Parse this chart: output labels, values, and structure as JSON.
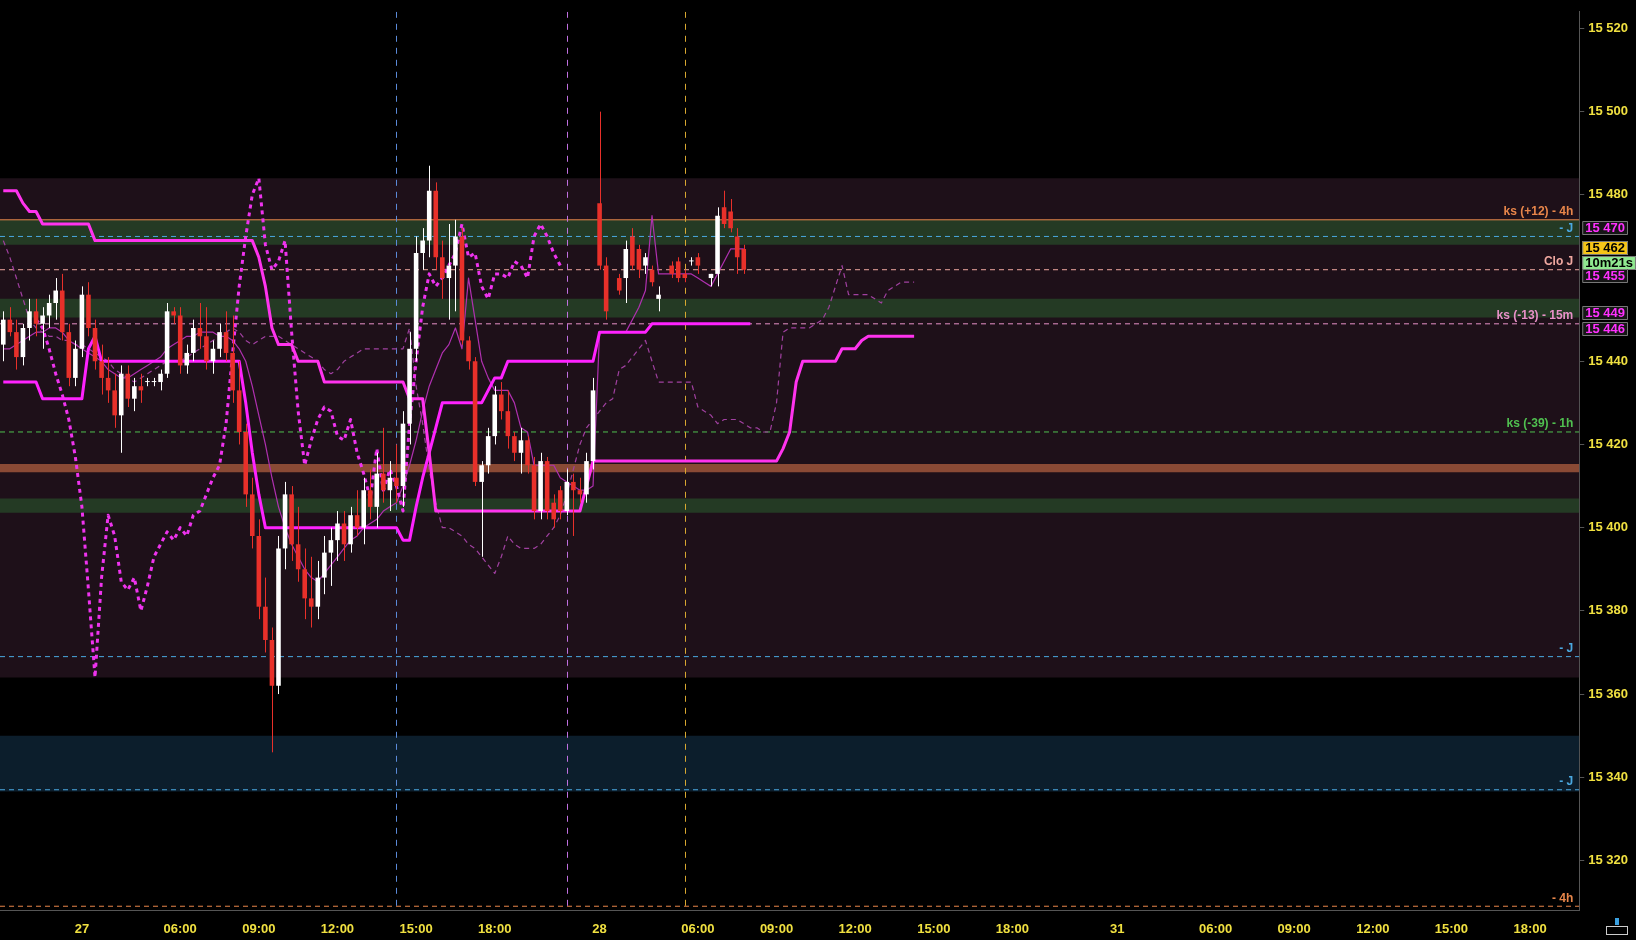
{
  "chart_data": {
    "type": "candlestick",
    "categories": [
      null,
      null,
      null,
      null,
      null,
      null,
      null,
      null,
      null,
      null,
      null,
      null,
      "27",
      null,
      null,
      null,
      null,
      null,
      null,
      null,
      null,
      null,
      null,
      null,
      null,
      null,
      null,
      "06:00",
      null,
      null,
      null,
      null,
      null,
      null,
      null,
      null,
      null,
      null,
      null,
      "09:00",
      null,
      null,
      null,
      null,
      null,
      null,
      null,
      null,
      null,
      null,
      null,
      "12:00",
      null,
      null,
      null,
      null,
      null,
      null,
      null,
      null,
      null,
      null,
      null,
      "15:00",
      null,
      null,
      null,
      null,
      null,
      null,
      null,
      null,
      null,
      null,
      null,
      "18:00",
      null,
      null,
      null,
      null,
      null,
      null,
      null,
      null,
      null,
      null,
      null,
      null,
      null,
      null,
      null,
      "28",
      null,
      null,
      null,
      null,
      null,
      null,
      null,
      null,
      null,
      null,
      null,
      null,
      null,
      null,
      "06:00",
      null,
      null,
      null,
      null,
      null,
      null,
      null,
      null,
      null,
      null,
      null,
      "09:00",
      null,
      null,
      null,
      null,
      null,
      null,
      null,
      null,
      null,
      null,
      null,
      "12:00",
      null,
      null,
      null,
      null,
      null,
      null,
      null,
      null,
      null,
      null,
      null,
      "15:00",
      null,
      null,
      null,
      null,
      null,
      null,
      null,
      null,
      null,
      null,
      null,
      "18:00",
      null,
      null,
      null,
      null,
      null,
      null,
      null,
      null,
      null,
      null,
      null,
      null,
      null,
      null,
      null,
      "31",
      null,
      null,
      null,
      null,
      null,
      null,
      null,
      null,
      null,
      null,
      null,
      null,
      null,
      null,
      "06:00",
      null,
      null,
      null,
      null,
      null,
      null,
      null,
      null,
      null,
      null,
      null,
      "09:00",
      null,
      null,
      null,
      null,
      null,
      null,
      null,
      null,
      null,
      null,
      null,
      "12:00",
      null,
      null,
      null,
      null,
      null,
      null,
      null,
      null,
      null,
      null,
      null,
      "15:00",
      null,
      null,
      null,
      null,
      null,
      null,
      null,
      null,
      null,
      null,
      null,
      "18:00",
      null,
      null,
      null,
      null,
      null,
      null,
      null
    ],
    "ohlc": [
      [
        15444,
        15452,
        15440,
        15450
      ],
      [
        15450,
        15453,
        15446,
        15447
      ],
      [
        15447,
        15450,
        15438,
        15441
      ],
      [
        15441,
        15449,
        15439,
        15448
      ],
      [
        15448,
        15455,
        15445,
        15452
      ],
      [
        15452,
        15455,
        15446,
        15449
      ],
      [
        15449,
        15453,
        15443,
        15451
      ],
      [
        15451,
        15456,
        15448,
        15454
      ],
      [
        15454,
        15460,
        15450,
        15457
      ],
      [
        15457,
        15461,
        15445,
        15447
      ],
      [
        15447,
        15449,
        15434,
        15436
      ],
      [
        15436,
        15445,
        15434,
        15443
      ],
      [
        15443,
        15458,
        15441,
        15456
      ],
      [
        15456,
        15459,
        15446,
        15448
      ],
      [
        15448,
        15450,
        15438,
        15440
      ],
      [
        15440,
        15444,
        15432,
        15436
      ],
      [
        15436,
        15441,
        15430,
        15433
      ],
      [
        15433,
        15437,
        15424,
        15427
      ],
      [
        15427,
        15439,
        15418,
        15437
      ],
      [
        15437,
        15439,
        15429,
        15431
      ],
      [
        15431,
        15436,
        15428,
        15434
      ],
      [
        15434,
        15437,
        15430,
        15433
      ],
      [
        15435,
        15436,
        15434,
        15435
      ],
      [
        15435,
        15436,
        15434,
        15435
      ],
      [
        15435,
        15438,
        15433,
        15437
      ],
      [
        15437,
        15454,
        15436,
        15452
      ],
      [
        15452,
        15453,
        15449,
        15451
      ],
      [
        15451,
        15453,
        15437,
        15439
      ],
      [
        15439,
        15444,
        15437,
        15442
      ],
      [
        15442,
        15450,
        15440,
        15448
      ],
      [
        15448,
        15454,
        15443,
        15446
      ],
      [
        15446,
        15453,
        15438,
        15440
      ],
      [
        15440,
        15445,
        15437,
        15443
      ],
      [
        15443,
        15449,
        15441,
        15447
      ],
      [
        15447,
        15452,
        15440,
        15442
      ],
      [
        15442,
        15451,
        15430,
        15433
      ],
      [
        15433,
        15440,
        15420,
        15423
      ],
      [
        15423,
        15425,
        15405,
        15408
      ],
      [
        15408,
        15412,
        15395,
        15398
      ],
      [
        15398,
        15402,
        15378,
        15381
      ],
      [
        15381,
        15388,
        15370,
        15373
      ],
      [
        15373,
        15376,
        15346,
        15362
      ],
      [
        15362,
        15398,
        15360,
        15395
      ],
      [
        15395,
        15411,
        15390,
        15408
      ],
      [
        15408,
        15410,
        15392,
        15396
      ],
      [
        15396,
        15405,
        15387,
        15390
      ],
      [
        15390,
        15395,
        15378,
        15383
      ],
      [
        15383,
        15393,
        15376,
        15381
      ],
      [
        15381,
        15392,
        15378,
        15388
      ],
      [
        15388,
        15398,
        15384,
        15394
      ],
      [
        15394,
        15400,
        15386,
        15397
      ],
      [
        15397,
        15404,
        15392,
        15401
      ],
      [
        15401,
        15404,
        15392,
        15396
      ],
      [
        15396,
        15405,
        15394,
        15403
      ],
      [
        15403,
        15409,
        15398,
        15400
      ],
      [
        15400,
        15412,
        15396,
        15409
      ],
      [
        15409,
        15414,
        15402,
        15405
      ],
      [
        15405,
        15418,
        15400,
        15413
      ],
      [
        15413,
        15424,
        15406,
        15409
      ],
      [
        15409,
        15416,
        15404,
        15412
      ],
      [
        15412,
        15420,
        15406,
        15410
      ],
      [
        15410,
        15428,
        15405,
        15425
      ],
      [
        15425,
        15447,
        15420,
        15443
      ],
      [
        15443,
        15470,
        15440,
        15466
      ],
      [
        15466,
        15472,
        15462,
        15469
      ],
      [
        15469,
        15487,
        15465,
        15481
      ],
      [
        15481,
        15483,
        15462,
        15465
      ],
      [
        15465,
        15469,
        15455,
        15460
      ],
      [
        15460,
        15473,
        15450,
        15463
      ],
      [
        15463,
        15474,
        15452,
        15470
      ],
      [
        15470,
        15472,
        15444,
        15445
      ],
      [
        15445,
        15446,
        15438,
        15440
      ],
      [
        15440,
        15441,
        15410,
        15411
      ],
      [
        15411,
        15416,
        15393,
        15415
      ],
      [
        15415,
        15424,
        15413,
        15422
      ],
      [
        15422,
        15434,
        15420,
        15432
      ],
      [
        15432,
        15435,
        15426,
        15428
      ],
      [
        15428,
        15433,
        15419,
        15422
      ],
      [
        15422,
        15423,
        15416,
        15418
      ],
      [
        15418,
        15424,
        15413,
        15421
      ],
      [
        15421,
        15422,
        15413,
        15415
      ],
      [
        15415,
        15417,
        15402,
        15404
      ],
      [
        15404,
        15418,
        15402,
        15416
      ],
      [
        15416,
        15417,
        15402,
        15404
      ],
      [
        15406,
        15408,
        15400,
        15402
      ],
      [
        15409,
        15410,
        15402,
        15404
      ],
      [
        15404,
        15414,
        15403,
        15411
      ],
      [
        15411,
        15413,
        15398,
        15409
      ],
      [
        15409,
        15412,
        15406,
        15408
      ],
      [
        15408,
        15418,
        15406,
        15416
      ],
      [
        15416,
        15436,
        15414,
        15433
      ],
      [
        15478,
        15500,
        15462,
        15463
      ],
      [
        15463,
        15465,
        15450,
        15452
      ],
      null,
      [
        15460,
        15461,
        15456,
        15457
      ],
      [
        15460,
        15469,
        15454,
        15467
      ],
      [
        15470,
        15472,
        15462,
        15463
      ],
      [
        15467,
        15468,
        15460,
        15462
      ],
      [
        15463,
        15466,
        15461,
        15465
      ],
      [
        15462,
        15463,
        15458,
        15459
      ],
      [
        15455,
        15458,
        15452,
        15456
      ],
      null,
      [
        15463,
        15464,
        15460,
        15461
      ],
      [
        15464,
        15465,
        15459,
        15460
      ],
      [
        15461,
        15462,
        15459,
        15460
      ],
      [
        15464,
        15465,
        15463,
        15464
      ],
      [
        15465,
        15466,
        15461,
        15463
      ],
      null,
      [
        15460,
        15461,
        15458,
        15461
      ],
      [
        15461,
        15477,
        15458,
        15475
      ],
      [
        15477,
        15481,
        15472,
        15473
      ],
      [
        15476,
        15479,
        15471,
        15472
      ],
      [
        15470,
        15472,
        15461,
        15465
      ],
      [
        15467,
        15468,
        15461,
        15462
      ],
      null,
      null,
      null,
      null,
      null,
      null,
      null,
      null,
      null,
      null,
      null,
      null,
      null,
      null,
      null,
      null,
      null,
      null,
      null,
      null,
      null,
      null,
      null,
      null,
      null,
      null,
      null,
      null,
      null,
      null,
      null,
      null,
      null,
      null,
      null,
      null,
      null,
      null,
      null,
      null,
      null,
      null,
      null,
      null,
      null,
      null,
      null,
      null,
      null,
      null,
      null,
      null,
      null,
      null,
      null,
      null,
      null,
      null,
      null,
      null,
      null,
      null,
      null,
      null,
      null,
      null,
      null,
      null,
      null,
      null,
      null,
      null,
      null,
      null,
      null,
      null,
      null,
      null,
      null,
      null,
      null,
      null,
      null,
      null,
      null,
      null,
      null,
      null,
      null,
      null,
      null,
      null,
      null,
      null,
      null,
      null,
      null,
      null,
      null,
      null,
      null,
      null,
      null,
      null,
      null,
      null,
      null,
      null,
      null,
      null,
      null,
      null,
      null,
      null,
      null,
      null,
      null,
      null,
      null,
      null,
      null,
      null,
      null,
      null,
      null,
      null,
      null
    ],
    "colors": [
      "#ffffff",
      "#e8302a",
      "#e8302a",
      "#ffffff",
      "#ffffff",
      "#e8302a",
      "#ffffff",
      "#ffffff",
      "#ffffff",
      "#e8302a",
      "#e8302a",
      "#ffffff",
      "#ffffff",
      "#e8302a",
      "#e8302a",
      "#e8302a",
      "#e8302a",
      "#e8302a",
      "#ffffff",
      "#e8302a",
      "#ffffff",
      "#e8302a",
      "#ffffff",
      "#ffffff",
      "#ffffff",
      "#ffffff",
      "#e8302a",
      "#e8302a",
      "#ffffff",
      "#ffffff",
      "#e8302a",
      "#e8302a",
      "#ffffff",
      "#ffffff",
      "#e8302a",
      "#e8302a",
      "#e8302a",
      "#e8302a",
      "#e8302a",
      "#e8302a",
      "#e8302a",
      "#e8302a",
      "#ffffff",
      "#ffffff",
      "#e8302a",
      "#e8302a",
      "#e8302a",
      "#e8302a",
      "#ffffff",
      "#ffffff",
      "#ffffff",
      "#ffffff",
      "#e8302a",
      "#ffffff",
      "#e8302a",
      "#ffffff",
      "#e8302a",
      "#ffffff",
      "#e8302a",
      "#ffffff",
      "#e8302a",
      "#ffffff",
      "#ffffff",
      "#ffffff",
      "#ffffff",
      "#ffffff",
      "#e8302a",
      "#e8302a",
      "#ffffff",
      "#ffffff",
      "#e8302a",
      "#e8302a",
      "#e8302a",
      "#ffffff",
      "#ffffff",
      "#ffffff",
      "#e8302a",
      "#e8302a",
      "#e8302a",
      "#ffffff",
      "#e8302a",
      "#e8302a",
      "#ffffff",
      "#e8302a",
      "#e8302a",
      "#e8302a",
      "#ffffff",
      "#e8302a",
      "#e8302a",
      "#ffffff",
      "#ffffff",
      "#e8302a",
      "#e8302a",
      null,
      "#e8302a",
      "#ffffff",
      "#e8302a",
      "#e8302a",
      "#ffffff",
      "#e8302a",
      "#ffffff",
      null,
      "#e8302a",
      "#e8302a",
      "#e8302a",
      "#ffffff",
      "#e8302a",
      null,
      "#ffffff",
      "#ffffff",
      "#e8302a",
      "#e8302a",
      "#e8302a",
      "#e8302a",
      null,
      null,
      null,
      null,
      null,
      null,
      null,
      null,
      null,
      null,
      null,
      null,
      null,
      null,
      null,
      null,
      null,
      null,
      null,
      null,
      null,
      null,
      null,
      null,
      null,
      null,
      null,
      null,
      null,
      null,
      null,
      null,
      null,
      null,
      null,
      null,
      null,
      null,
      null,
      null,
      null,
      null,
      null,
      null,
      null,
      null,
      null,
      null,
      null,
      null,
      null,
      null,
      null,
      null,
      null,
      null,
      null,
      null,
      null,
      null,
      null,
      null,
      null,
      null,
      null,
      null,
      null,
      null,
      null,
      null,
      null,
      null,
      null,
      null,
      null,
      null,
      null,
      null,
      null,
      null,
      null,
      null,
      null,
      null,
      null,
      null,
      null,
      null,
      null,
      null,
      null,
      null,
      null,
      null,
      null,
      null,
      null,
      null,
      null,
      null,
      null,
      null,
      null,
      null,
      null,
      null,
      null,
      null,
      null,
      null,
      null,
      null,
      null,
      null,
      null,
      null,
      null,
      null,
      null,
      null,
      null,
      null,
      null,
      null,
      null,
      null,
      null
    ],
    "series": [
      {
        "type": "line",
        "color": "#ff33ee",
        "line_style": "solid",
        "values": [
          15481,
          15481,
          15481,
          15478,
          15476,
          15476,
          15473,
          15473,
          15473,
          15473,
          15473,
          15473,
          15473,
          15473,
          15469,
          15469,
          15469,
          15469,
          15469,
          15469,
          15469,
          15469,
          15469,
          15469,
          15469,
          15469,
          15469,
          15469,
          15469,
          15469,
          15469,
          15469,
          15469,
          15469,
          15469,
          15469,
          15469,
          15469,
          15469,
          15465,
          15458,
          15448,
          15444,
          15444,
          15444,
          15440,
          15440,
          15440,
          15440,
          15435,
          15435,
          15435,
          15435,
          15435,
          15435,
          15435,
          15435,
          15435,
          15435,
          15435,
          15435,
          15435,
          15431,
          15431,
          15431,
          15418,
          15404,
          15404,
          15404,
          15404,
          15404,
          15404,
          15404,
          15404,
          15404,
          15404,
          15404,
          15404,
          15404,
          15404,
          15404,
          15404,
          15404,
          15404,
          15404,
          15404,
          15404,
          15404,
          15404,
          15410,
          15416,
          15416,
          15416,
          15416,
          15416,
          15416,
          15416,
          15416,
          15416,
          15416,
          15416,
          15416,
          15416,
          15416,
          15416,
          15416,
          15416,
          15416,
          15416,
          15416,
          15416,
          15416,
          15416,
          15416,
          15416,
          15416,
          15416,
          15416,
          15416,
          15419,
          15423,
          15435,
          15440,
          15440,
          15440,
          15440,
          15440,
          15440,
          15443,
          15443,
          15443,
          15445,
          15446,
          15446,
          15446,
          15446,
          15446,
          15446,
          15446,
          15446,
          null,
          null,
          null,
          null,
          null,
          null,
          null,
          null,
          null,
          null,
          null,
          null,
          null,
          null,
          null,
          null,
          null,
          null,
          null,
          null,
          null,
          null,
          null,
          null,
          null,
          null,
          null,
          null,
          null,
          null,
          null,
          null,
          null,
          null,
          null,
          null,
          null,
          null,
          null,
          null,
          null,
          null,
          null,
          null,
          null,
          null,
          null,
          null,
          null,
          null,
          null,
          null,
          null,
          null,
          null,
          null,
          null,
          null,
          null,
          null,
          null,
          null,
          null,
          null,
          null,
          null,
          null,
          null,
          null,
          null,
          null,
          null,
          null,
          null,
          null,
          null,
          null,
          null,
          null,
          null,
          null,
          null,
          null,
          null,
          null,
          null,
          null,
          null,
          null,
          null,
          null,
          null,
          null,
          null,
          null,
          null,
          null,
          null,
          null,
          null,
          null
        ]
      },
      {
        "type": "line",
        "color": "#ff22ff",
        "line_style": "solid",
        "values": [
          15435,
          15435,
          15435,
          15435,
          15435,
          15435,
          15431,
          15431,
          15431,
          15431,
          15431,
          15431,
          15431,
          15443,
          15446,
          15440,
          15440,
          15440,
          15440,
          15440,
          15440,
          15440,
          15440,
          15440,
          15440,
          15440,
          15440,
          15440,
          15440,
          15440,
          15440,
          15440,
          15440,
          15440,
          15440,
          15440,
          15440,
          15430,
          15418,
          15408,
          15400,
          15400,
          15400,
          15400,
          15400,
          15400,
          15400,
          15400,
          15400,
          15400,
          15400,
          15400,
          15400,
          15400,
          15400,
          15400,
          15400,
          15400,
          15400,
          15400,
          15400,
          15397,
          15397,
          15405,
          15412,
          15418,
          15424,
          15430,
          15430,
          15430,
          15430,
          15430,
          15430,
          15430,
          15433,
          15436,
          15436,
          15440,
          15440,
          15440,
          15440,
          15440,
          15440,
          15440,
          15440,
          15440,
          15440,
          15440,
          15440,
          15440,
          15440,
          15447,
          15447,
          15447,
          15447,
          15447,
          15447,
          15447,
          15447,
          15449,
          15449,
          15449,
          15449,
          15449,
          15449,
          15449,
          15449,
          15449,
          15449,
          15449,
          15449,
          15449,
          15449,
          15449,
          15449,
          null,
          null,
          null,
          null,
          null,
          null,
          null,
          null,
          null,
          null,
          null,
          null,
          null,
          null,
          null,
          null,
          null,
          null,
          null,
          null,
          null,
          null,
          null,
          null,
          null,
          null,
          null,
          null,
          null,
          null,
          null,
          null,
          null,
          null,
          null,
          null,
          null,
          null,
          null,
          null,
          null,
          null,
          null,
          null,
          null,
          null,
          null,
          null,
          null,
          null,
          null,
          null,
          null,
          null,
          null,
          null,
          null,
          null,
          null,
          null,
          null,
          null,
          null,
          null,
          null,
          null,
          null,
          null,
          null,
          null,
          null,
          null,
          null,
          null,
          null,
          null,
          null,
          null,
          null,
          null,
          null,
          null,
          null,
          null,
          null,
          null,
          null,
          null,
          null,
          null,
          null,
          null,
          null,
          null,
          null,
          null,
          null,
          null,
          null,
          null,
          null,
          null,
          null,
          null,
          null,
          null,
          null,
          null,
          null,
          null,
          null,
          null,
          null,
          null,
          null,
          null,
          null,
          null,
          null,
          null,
          null,
          null,
          null,
          null,
          null,
          null
        ]
      },
      {
        "type": "line",
        "color": "#ee33ee",
        "line_style": "dotted",
        "values": [
          null,
          null,
          null,
          null,
          null,
          15450,
          15448,
          15443,
          15437,
          15432,
          15426,
          15417,
          15405,
          15385,
          15364,
          15388,
          15403,
          15398,
          15387,
          15385,
          15388,
          15380,
          15386,
          15393,
          15396,
          15399,
          15397,
          15400,
          15398,
          15403,
          15404,
          15408,
          15412,
          15415,
          15425,
          15442,
          15458,
          15470,
          15480,
          15484,
          15468,
          15462,
          15464,
          15469,
          15447,
          15428,
          15415,
          15421,
          15426,
          15429,
          15428,
          15422,
          15421,
          15426,
          15418,
          15413,
          15407,
          15419,
          15409,
          15414,
          15410,
          15404,
          15425,
          15440,
          15453,
          15461,
          15458,
          15460,
          15463,
          15466,
          15473,
          15465,
          15466,
          15458,
          15455,
          15461,
          15461,
          15460,
          15464,
          15463,
          15460,
          15470,
          15473,
          15470,
          15466,
          15463,
          null,
          null,
          null,
          null,
          null,
          null,
          null,
          null,
          null,
          null,
          null,
          null,
          null,
          null,
          null,
          null,
          null,
          null,
          null,
          null,
          null,
          null,
          null,
          null,
          null,
          null,
          null,
          null,
          null,
          null,
          null,
          null,
          null,
          null,
          null,
          null,
          null,
          null,
          null,
          null,
          null,
          null,
          null,
          null,
          null,
          null,
          null,
          null,
          null,
          null,
          null,
          null,
          null,
          null,
          null,
          null,
          null,
          null,
          null,
          null,
          null,
          null,
          null,
          null,
          null,
          null,
          null,
          null,
          null,
          null,
          null,
          null,
          null,
          null,
          null,
          null,
          null,
          null,
          null,
          null,
          null,
          null,
          null,
          null,
          null,
          null,
          null,
          null,
          null,
          null,
          null,
          null,
          null,
          null,
          null,
          null,
          null,
          null,
          null,
          null,
          null,
          null,
          null,
          null,
          null,
          null,
          null,
          null,
          null,
          null,
          null,
          null,
          null,
          null,
          null,
          null,
          null,
          null,
          null,
          null,
          null,
          null,
          null,
          null,
          null,
          null,
          null,
          null,
          null,
          null,
          null,
          null,
          null,
          null,
          null,
          null,
          null,
          null,
          null,
          null,
          null,
          null,
          null,
          null,
          null,
          null,
          null,
          null,
          null,
          null,
          null,
          null,
          null,
          null,
          null
        ]
      },
      {
        "type": "line",
        "color": "#b030b0",
        "line_style": "solid",
        "values": [
          15443,
          15443,
          15444,
          15445,
          15446,
          15447,
          15447,
          15448,
          15448,
          15447,
          15445,
          15444,
          15443,
          15442,
          15441,
          15440,
          15438,
          15437,
          15436,
          15436,
          15437,
          15438,
          15439,
          15440,
          15441,
          15443,
          15444,
          15445,
          15446,
          15446,
          15447,
          15447,
          15447,
          15446,
          15446,
          15445,
          15443,
          15440,
          15434,
          15427,
          15420,
          15412,
          15405,
          15400,
          15396,
          15393,
          15390,
          15388,
          15387,
          15389,
          15391,
          15393,
          15395,
          15397,
          15398,
          15400,
          15401,
          15402,
          15404,
          15405,
          15406,
          15410,
          15415,
          15421,
          15428,
          15434,
          15438,
          15442,
          15444,
          15448,
          15443,
          15460,
          15450,
          15440,
          15436,
          15433,
          15433,
          15433,
          15430,
          15424,
          15423,
          15415,
          15415,
          15415,
          15415,
          15412,
          15411,
          15410,
          15409,
          15409,
          15410,
          15447,
          15447,
          15447,
          15447,
          15447,
          15450,
          15453,
          15457,
          15475,
          15461,
          15461,
          15461,
          15461,
          15461,
          15461,
          15460,
          15459,
          15458,
          15461,
          15464,
          15467,
          15467,
          15467,
          null,
          null,
          null,
          null,
          null,
          null,
          null,
          null,
          null,
          null,
          null,
          null,
          null,
          null,
          null,
          null,
          null,
          null,
          null,
          null,
          null,
          null,
          null,
          null,
          null,
          null,
          null,
          null,
          null,
          null,
          null,
          null,
          null,
          null,
          null,
          null,
          null,
          null,
          null,
          null,
          null,
          null,
          null,
          null,
          null,
          null,
          null,
          null,
          null,
          null,
          null,
          null,
          null,
          null,
          null,
          null,
          null,
          null,
          null,
          null,
          null,
          null,
          null,
          null,
          null,
          null,
          null,
          null,
          null,
          null,
          null,
          null,
          null,
          null,
          null,
          null,
          null,
          null,
          null,
          null,
          null,
          null,
          null,
          null,
          null,
          null,
          null,
          null,
          null,
          null,
          null,
          null,
          null,
          null,
          null,
          null,
          null,
          null,
          null,
          null,
          null,
          null,
          null,
          null,
          null,
          null,
          null,
          null,
          null,
          null,
          null,
          null,
          null,
          null,
          null,
          null,
          null,
          null,
          null,
          null,
          null,
          null,
          null,
          null,
          null,
          null,
          null
        ]
      },
      {
        "type": "line",
        "color": "#a040a0",
        "line_style": "dashed",
        "values": [
          15469,
          15465,
          15460,
          15455,
          15450,
          15448,
          15447,
          15446,
          15446,
          15445,
          15445,
          15444,
          15444,
          15443,
          15442,
          15441,
          15440,
          15438,
          15437,
          15436,
          15435,
          15436,
          15437,
          15438,
          15439,
          15440,
          15440,
          15440,
          15441,
          15442,
          15443,
          15444,
          15445,
          15446,
          15447,
          15448,
          15447,
          15445,
          15444,
          15445,
          15446,
          15446,
          15446,
          15445,
          15444,
          15443,
          15442,
          15441,
          15440,
          15438,
          15437,
          15438,
          15440,
          15441,
          15442,
          15443,
          15443,
          15443,
          15443,
          15443,
          15443,
          15443,
          15448,
          15434,
          15425,
          15414,
          15406,
          15400,
          15400,
          15399,
          15398,
          15396,
          15395,
          15393,
          15391,
          15389,
          15393,
          15398,
          15396,
          15395,
          15395,
          15395,
          15396,
          15398,
          15400,
          15403,
          15408,
          15414,
          15420,
          15424,
          15426,
          15428,
          15430,
          15431,
          15438,
          15439,
          15441,
          15443,
          15445,
          15440,
          15435,
          15435,
          15435,
          15435,
          15435,
          15435,
          15429,
          15428,
          15427,
          15425,
          15426,
          15426,
          15426,
          15425,
          15424,
          15424,
          15423,
          15423,
          15430,
          15447,
          15448,
          15448,
          15448,
          15448,
          15449,
          15450,
          15453,
          15458,
          15463,
          15456,
          15456,
          15456,
          15456,
          15455,
          15454,
          15457,
          15458,
          15459,
          15459,
          15459,
          null,
          null,
          null,
          null,
          null,
          null,
          null,
          null,
          null,
          null,
          null,
          null,
          null,
          null,
          null,
          null,
          null,
          null,
          null,
          null,
          null,
          null,
          null,
          null,
          null,
          null,
          null,
          null,
          null,
          null,
          null,
          null,
          null,
          null,
          null,
          null,
          null,
          null,
          null,
          null,
          null,
          null,
          null,
          null,
          null,
          null,
          null,
          null,
          null,
          null,
          null,
          null,
          null,
          null,
          null,
          null,
          null,
          null,
          null,
          null,
          null,
          null,
          null,
          null,
          null,
          null,
          null,
          null,
          null,
          null,
          null,
          null,
          null,
          null,
          null,
          null,
          null,
          null,
          null,
          null,
          null,
          null,
          null,
          null,
          null,
          null,
          null,
          null,
          null,
          null,
          null,
          null,
          null,
          null,
          null,
          null,
          null,
          null,
          null,
          null,
          null
        ]
      }
    ],
    "ylim": [
      15308,
      15524
    ],
    "yticks": [
      {
        "value": 15320,
        "label": "15 320"
      },
      {
        "value": 15340,
        "label": "15 340"
      },
      {
        "value": 15360,
        "label": "15 360"
      },
      {
        "value": 15380,
        "label": "15 380"
      },
      {
        "value": 15400,
        "label": "15 400"
      },
      {
        "value": 15420,
        "label": "15 420"
      },
      {
        "value": 15440,
        "label": "15 440"
      },
      {
        "value": 15480,
        "label": "15 480"
      },
      {
        "value": 15500,
        "label": "15 500"
      },
      {
        "value": 15520,
        "label": "15 520"
      }
    ],
    "bands": [
      {
        "axis": "y",
        "from": 15364,
        "to": 15484,
        "color": "#1e1019"
      },
      {
        "axis": "y",
        "from": 15468,
        "to": 15474,
        "color": "#243a24"
      },
      {
        "axis": "y",
        "from": 15450.5,
        "to": 15455,
        "color": "#243a24"
      },
      {
        "axis": "y",
        "from": 15403.6,
        "to": 15407,
        "color": "#243a24"
      },
      {
        "axis": "y",
        "from": 15336.6,
        "to": 15350,
        "color": "#0c1e2c"
      },
      {
        "axis": "y",
        "from": 15413.3,
        "to": 15415.3,
        "color": "#8a4a35"
      }
    ],
    "ref_lines": [
      {
        "axis": "y",
        "value": 15474,
        "label": "ks (+12) - 4h",
        "color": "#e8864a",
        "line_style": "solid"
      },
      {
        "axis": "y",
        "value": 15470,
        "label": "- J",
        "color": "#4aa8e0",
        "line_style": "dashed"
      },
      {
        "axis": "y",
        "value": 15462,
        "label": "Clo J",
        "color": "#f0a8a0",
        "line_style": "dashed"
      },
      {
        "axis": "y",
        "value": 15449,
        "label": "ks (-13) - 15m",
        "color": "#e890c8",
        "line_style": "dashed"
      },
      {
        "axis": "y",
        "value": 15423,
        "label": "ks (-39) - 1h",
        "color": "#50c050",
        "line_style": "dashed"
      },
      {
        "axis": "y",
        "value": 15369,
        "label": "- J",
        "color": "#4aa8e0",
        "line_style": "dashed"
      },
      {
        "axis": "y",
        "value": 15337,
        "label": "- J",
        "color": "#4aa8e0",
        "line_style": "dashed"
      },
      {
        "axis": "y",
        "value": 15309,
        "label": "- 4h",
        "color": "#e8864a",
        "line_style": "dashed"
      }
    ],
    "annotations": [
      "15 470",
      "15 462",
      "10m21s",
      "15 455",
      "15 449",
      "15 446"
    ],
    "legend": false
  }
}
